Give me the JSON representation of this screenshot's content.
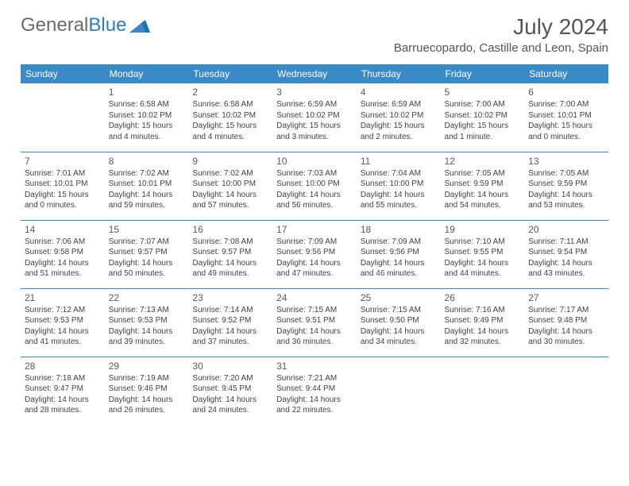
{
  "logo": {
    "part1": "General",
    "part2": "Blue"
  },
  "title": "July 2024",
  "location": "Barruecopardo, Castille and Leon, Spain",
  "colors": {
    "header_bg": "#3a8ac8",
    "header_fg": "#ffffff",
    "text": "#424242",
    "rule": "#3a8ac8"
  },
  "day_headers": [
    "Sunday",
    "Monday",
    "Tuesday",
    "Wednesday",
    "Thursday",
    "Friday",
    "Saturday"
  ],
  "weeks": [
    [
      null,
      {
        "n": "1",
        "sr": "Sunrise: 6:58 AM",
        "ss": "Sunset: 10:02 PM",
        "d1": "Daylight: 15 hours",
        "d2": "and 4 minutes."
      },
      {
        "n": "2",
        "sr": "Sunrise: 6:58 AM",
        "ss": "Sunset: 10:02 PM",
        "d1": "Daylight: 15 hours",
        "d2": "and 4 minutes."
      },
      {
        "n": "3",
        "sr": "Sunrise: 6:59 AM",
        "ss": "Sunset: 10:02 PM",
        "d1": "Daylight: 15 hours",
        "d2": "and 3 minutes."
      },
      {
        "n": "4",
        "sr": "Sunrise: 6:59 AM",
        "ss": "Sunset: 10:02 PM",
        "d1": "Daylight: 15 hours",
        "d2": "and 2 minutes."
      },
      {
        "n": "5",
        "sr": "Sunrise: 7:00 AM",
        "ss": "Sunset: 10:02 PM",
        "d1": "Daylight: 15 hours",
        "d2": "and 1 minute."
      },
      {
        "n": "6",
        "sr": "Sunrise: 7:00 AM",
        "ss": "Sunset: 10:01 PM",
        "d1": "Daylight: 15 hours",
        "d2": "and 0 minutes."
      }
    ],
    [
      {
        "n": "7",
        "sr": "Sunrise: 7:01 AM",
        "ss": "Sunset: 10:01 PM",
        "d1": "Daylight: 15 hours",
        "d2": "and 0 minutes."
      },
      {
        "n": "8",
        "sr": "Sunrise: 7:02 AM",
        "ss": "Sunset: 10:01 PM",
        "d1": "Daylight: 14 hours",
        "d2": "and 59 minutes."
      },
      {
        "n": "9",
        "sr": "Sunrise: 7:02 AM",
        "ss": "Sunset: 10:00 PM",
        "d1": "Daylight: 14 hours",
        "d2": "and 57 minutes."
      },
      {
        "n": "10",
        "sr": "Sunrise: 7:03 AM",
        "ss": "Sunset: 10:00 PM",
        "d1": "Daylight: 14 hours",
        "d2": "and 56 minutes."
      },
      {
        "n": "11",
        "sr": "Sunrise: 7:04 AM",
        "ss": "Sunset: 10:00 PM",
        "d1": "Daylight: 14 hours",
        "d2": "and 55 minutes."
      },
      {
        "n": "12",
        "sr": "Sunrise: 7:05 AM",
        "ss": "Sunset: 9:59 PM",
        "d1": "Daylight: 14 hours",
        "d2": "and 54 minutes."
      },
      {
        "n": "13",
        "sr": "Sunrise: 7:05 AM",
        "ss": "Sunset: 9:59 PM",
        "d1": "Daylight: 14 hours",
        "d2": "and 53 minutes."
      }
    ],
    [
      {
        "n": "14",
        "sr": "Sunrise: 7:06 AM",
        "ss": "Sunset: 9:58 PM",
        "d1": "Daylight: 14 hours",
        "d2": "and 51 minutes."
      },
      {
        "n": "15",
        "sr": "Sunrise: 7:07 AM",
        "ss": "Sunset: 9:57 PM",
        "d1": "Daylight: 14 hours",
        "d2": "and 50 minutes."
      },
      {
        "n": "16",
        "sr": "Sunrise: 7:08 AM",
        "ss": "Sunset: 9:57 PM",
        "d1": "Daylight: 14 hours",
        "d2": "and 49 minutes."
      },
      {
        "n": "17",
        "sr": "Sunrise: 7:09 AM",
        "ss": "Sunset: 9:56 PM",
        "d1": "Daylight: 14 hours",
        "d2": "and 47 minutes."
      },
      {
        "n": "18",
        "sr": "Sunrise: 7:09 AM",
        "ss": "Sunset: 9:56 PM",
        "d1": "Daylight: 14 hours",
        "d2": "and 46 minutes."
      },
      {
        "n": "19",
        "sr": "Sunrise: 7:10 AM",
        "ss": "Sunset: 9:55 PM",
        "d1": "Daylight: 14 hours",
        "d2": "and 44 minutes."
      },
      {
        "n": "20",
        "sr": "Sunrise: 7:11 AM",
        "ss": "Sunset: 9:54 PM",
        "d1": "Daylight: 14 hours",
        "d2": "and 43 minutes."
      }
    ],
    [
      {
        "n": "21",
        "sr": "Sunrise: 7:12 AM",
        "ss": "Sunset: 9:53 PM",
        "d1": "Daylight: 14 hours",
        "d2": "and 41 minutes."
      },
      {
        "n": "22",
        "sr": "Sunrise: 7:13 AM",
        "ss": "Sunset: 9:53 PM",
        "d1": "Daylight: 14 hours",
        "d2": "and 39 minutes."
      },
      {
        "n": "23",
        "sr": "Sunrise: 7:14 AM",
        "ss": "Sunset: 9:52 PM",
        "d1": "Daylight: 14 hours",
        "d2": "and 37 minutes."
      },
      {
        "n": "24",
        "sr": "Sunrise: 7:15 AM",
        "ss": "Sunset: 9:51 PM",
        "d1": "Daylight: 14 hours",
        "d2": "and 36 minutes."
      },
      {
        "n": "25",
        "sr": "Sunrise: 7:15 AM",
        "ss": "Sunset: 9:50 PM",
        "d1": "Daylight: 14 hours",
        "d2": "and 34 minutes."
      },
      {
        "n": "26",
        "sr": "Sunrise: 7:16 AM",
        "ss": "Sunset: 9:49 PM",
        "d1": "Daylight: 14 hours",
        "d2": "and 32 minutes."
      },
      {
        "n": "27",
        "sr": "Sunrise: 7:17 AM",
        "ss": "Sunset: 9:48 PM",
        "d1": "Daylight: 14 hours",
        "d2": "and 30 minutes."
      }
    ],
    [
      {
        "n": "28",
        "sr": "Sunrise: 7:18 AM",
        "ss": "Sunset: 9:47 PM",
        "d1": "Daylight: 14 hours",
        "d2": "and 28 minutes."
      },
      {
        "n": "29",
        "sr": "Sunrise: 7:19 AM",
        "ss": "Sunset: 9:46 PM",
        "d1": "Daylight: 14 hours",
        "d2": "and 26 minutes."
      },
      {
        "n": "30",
        "sr": "Sunrise: 7:20 AM",
        "ss": "Sunset: 9:45 PM",
        "d1": "Daylight: 14 hours",
        "d2": "and 24 minutes."
      },
      {
        "n": "31",
        "sr": "Sunrise: 7:21 AM",
        "ss": "Sunset: 9:44 PM",
        "d1": "Daylight: 14 hours",
        "d2": "and 22 minutes."
      },
      null,
      null,
      null
    ]
  ]
}
